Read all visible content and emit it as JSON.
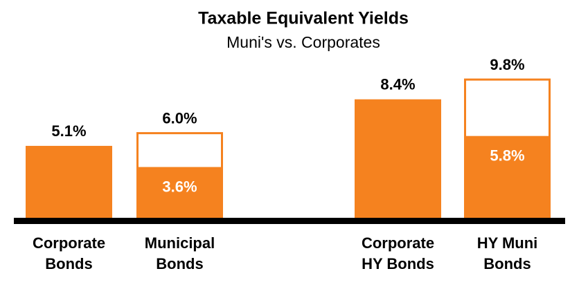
{
  "chart_data": {
    "type": "bar",
    "title": "Taxable Equivalent Yields",
    "subtitle": "Muni's vs. Corporates",
    "categories": [
      [
        "Corporate",
        "Bonds"
      ],
      [
        "Municipal",
        "Bonds"
      ],
      [
        "Corporate",
        "HY Bonds"
      ],
      [
        "HY Muni",
        "Bonds"
      ]
    ],
    "values": [
      5.1,
      6.0,
      8.4,
      9.8
    ],
    "value_labels": [
      "5.1%",
      "6.0%",
      "8.4%",
      "9.8%"
    ],
    "inner_values": [
      null,
      3.6,
      null,
      5.8
    ],
    "inner_value_labels": [
      null,
      "3.6%",
      null,
      "5.8%"
    ],
    "outlined": [
      false,
      true,
      false,
      true
    ],
    "color": "#f5821f",
    "ylim": [
      0,
      10
    ]
  }
}
